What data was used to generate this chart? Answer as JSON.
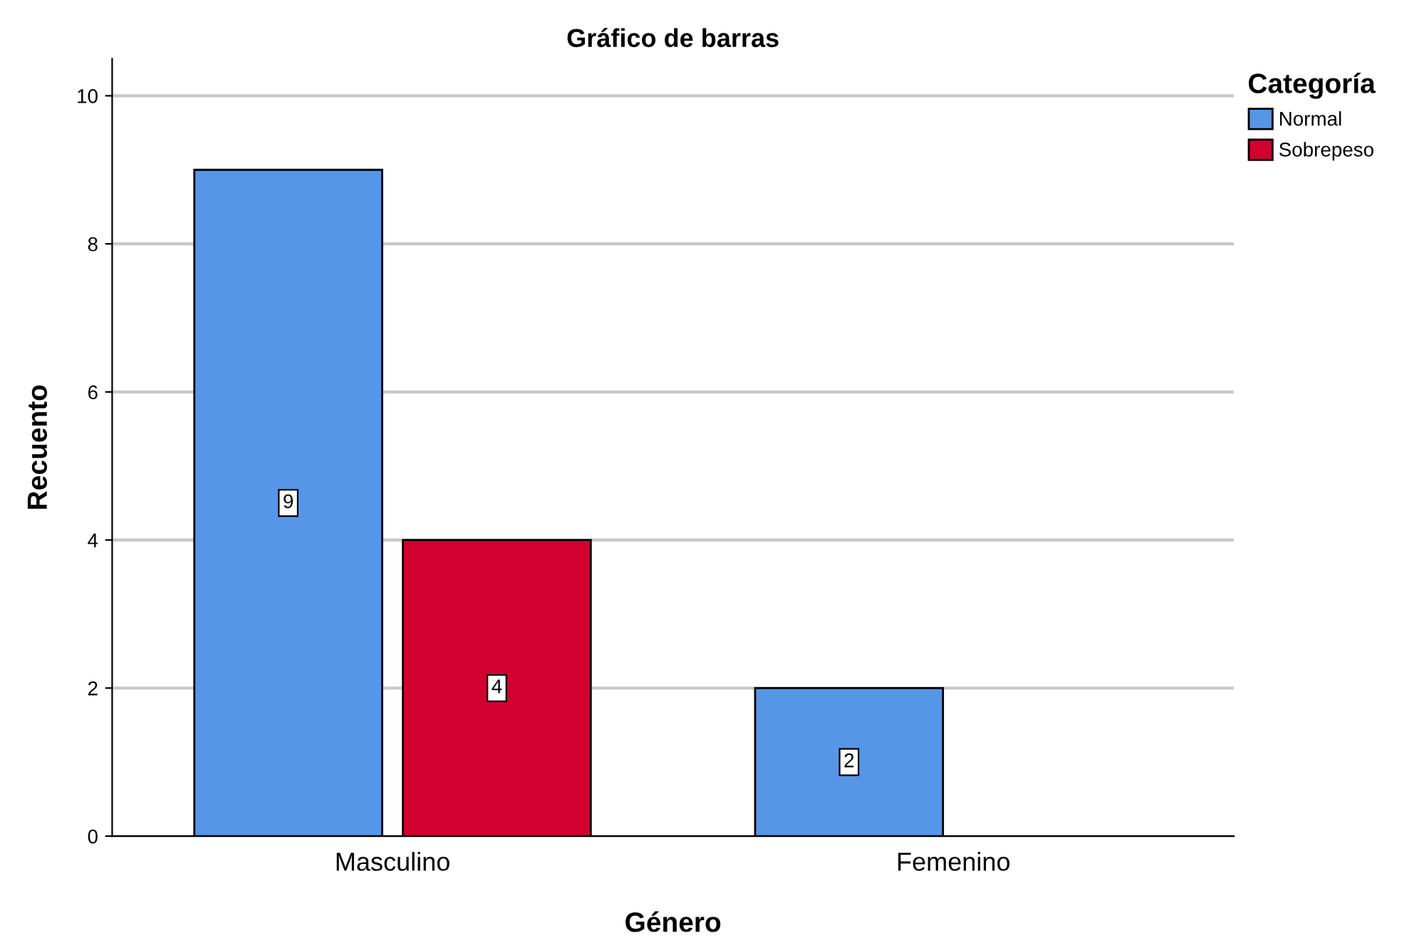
{
  "chart_data": {
    "type": "bar",
    "title": "Gráfico de barras",
    "xlabel": "Género",
    "ylabel": "Recuento",
    "legend_title": "Categoría",
    "categories": [
      "Masculino",
      "Femenino"
    ],
    "series": [
      {
        "name": "Normal",
        "color": "#5596e6",
        "values": [
          9,
          2
        ]
      },
      {
        "name": "Sobrepeso",
        "color": "#d2002e",
        "values": [
          4,
          null
        ]
      }
    ],
    "ylim": [
      0,
      10.5
    ],
    "yticks": [
      0,
      2,
      4,
      6,
      8,
      10
    ],
    "grid": "y",
    "legend": "top right",
    "data_labels": true
  }
}
